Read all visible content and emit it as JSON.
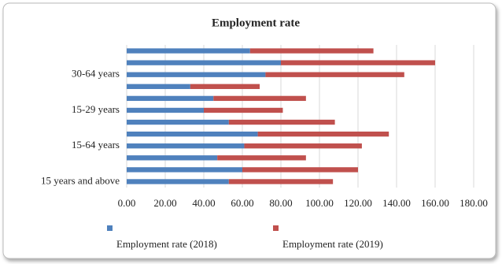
{
  "chart_data": {
    "type": "stacked-barh",
    "title": "Employment rate",
    "categories": [
      null,
      null,
      "30-64 years",
      null,
      null,
      "15-29 years",
      null,
      null,
      "15-64 years",
      null,
      null,
      "15 years and above"
    ],
    "series": [
      {
        "name": "Employment rate (2018)",
        "color": "#4f81bd",
        "values": [
          64,
          80,
          72,
          33,
          45,
          40,
          53,
          68,
          61,
          47,
          60,
          53
        ]
      },
      {
        "name": "Employment rate (2019)",
        "color": "#c0504d",
        "values": [
          64,
          80,
          72,
          36,
          48,
          41,
          55,
          68,
          61,
          46,
          60,
          54
        ]
      }
    ],
    "xlim": [
      0,
      180
    ],
    "xticks": [
      {
        "value": 0,
        "label": "0.00"
      },
      {
        "value": 20,
        "label": "20.00"
      },
      {
        "value": 40,
        "label": "40.00"
      },
      {
        "value": 60,
        "label": "60.00"
      },
      {
        "value": 80,
        "label": "80.00"
      },
      {
        "value": 100,
        "label": "100.00"
      },
      {
        "value": 120,
        "label": "120.00"
      },
      {
        "value": 140,
        "label": "140.00"
      },
      {
        "value": 160,
        "label": "160.00"
      },
      {
        "value": 180,
        "label": "180.00"
      }
    ],
    "grid": true,
    "legend": "bottom"
  }
}
